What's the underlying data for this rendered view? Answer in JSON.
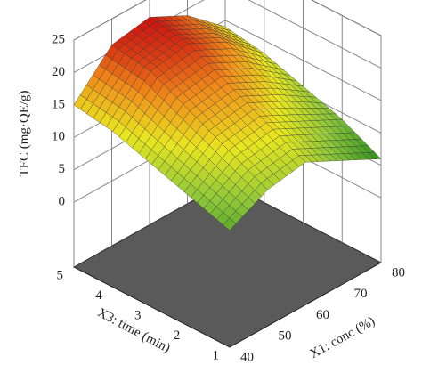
{
  "chart_data": {
    "type": "surface",
    "xlabel": "X1: conc (%)",
    "ylabel": "X3: time (min)",
    "zlabel": "TFC (mg·QE/g)",
    "x": [
      40,
      50,
      60,
      70,
      80
    ],
    "y": [
      1,
      2,
      3,
      4,
      5
    ],
    "z": [
      [
        8,
        11,
        12,
        9,
        6
      ],
      [
        10,
        14,
        15,
        12,
        9
      ],
      [
        12,
        17,
        18,
        15,
        11
      ],
      [
        14,
        20,
        21,
        18,
        13
      ],
      [
        15,
        21,
        22,
        19,
        14
      ]
    ],
    "xlim": [
      40,
      80
    ],
    "ylim": [
      1,
      5
    ],
    "zlim": [
      -10,
      25
    ],
    "xticks": [
      40,
      50,
      60,
      70,
      80
    ],
    "yticks": [
      1,
      2,
      3,
      4,
      5
    ],
    "zticks": [
      0,
      5,
      10,
      15,
      20,
      25
    ],
    "colormap": [
      "#2f8f1f",
      "#8cc63a",
      "#e8e620",
      "#f08a1a",
      "#cc1010"
    ],
    "grid": true
  }
}
